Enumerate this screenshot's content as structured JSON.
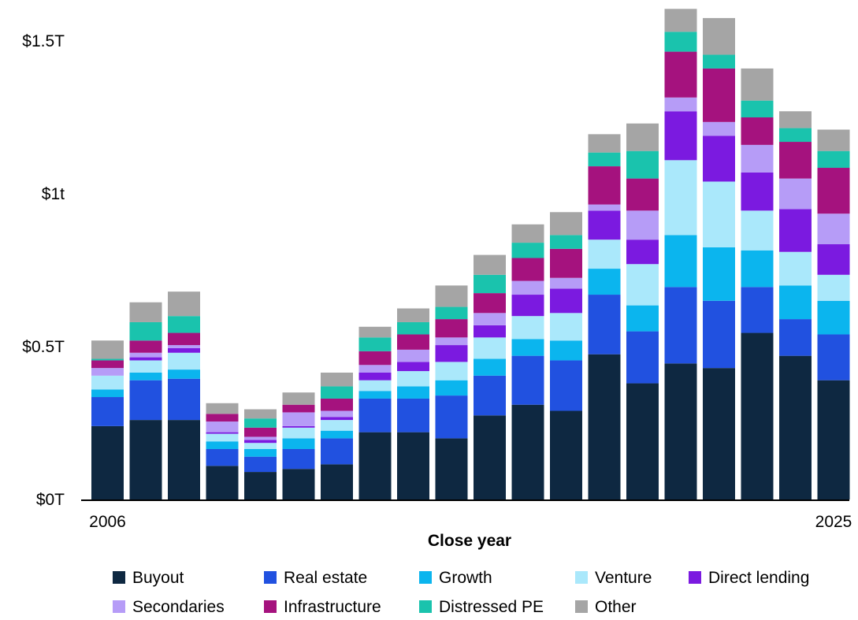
{
  "chart_data": {
    "type": "bar",
    "stacked": true,
    "title": "",
    "xlabel": "Close year",
    "ylabel": "",
    "categories": [
      "2006",
      "2007",
      "2008",
      "2009",
      "2010",
      "2011",
      "2012",
      "2013",
      "2014",
      "2015",
      "2016",
      "2017",
      "2018",
      "2019",
      "2020",
      "2021",
      "2022",
      "2023",
      "2024",
      "2025"
    ],
    "x_tick_labels": [
      {
        "category": "2006",
        "text": "2006"
      },
      {
        "category": "2025",
        "text": "2025"
      }
    ],
    "y_ticks": [
      {
        "value": 0,
        "text": "$0T"
      },
      {
        "value": 0.5,
        "text": "$0.5T"
      },
      {
        "value": 1.0,
        "text": "$1t"
      },
      {
        "value": 1.5,
        "text": "$1.5T"
      }
    ],
    "ylim": [
      0,
      1.6
    ],
    "grid": false,
    "legend_position": "bottom",
    "series": [
      {
        "name": "Buyout",
        "color": "#0e2841",
        "values": [
          0.24,
          0.26,
          0.26,
          0.11,
          0.09,
          0.1,
          0.115,
          0.22,
          0.22,
          0.2,
          0.275,
          0.31,
          0.29,
          0.475,
          0.38,
          0.445,
          0.43,
          0.545,
          0.47,
          0.39
        ]
      },
      {
        "name": "Real estate",
        "color": "#2151e0",
        "values": [
          0.095,
          0.13,
          0.135,
          0.055,
          0.05,
          0.065,
          0.085,
          0.11,
          0.11,
          0.14,
          0.13,
          0.16,
          0.165,
          0.195,
          0.17,
          0.25,
          0.22,
          0.15,
          0.12,
          0.15
        ]
      },
      {
        "name": "Growth",
        "color": "#0bb5ee",
        "values": [
          0.025,
          0.025,
          0.03,
          0.025,
          0.025,
          0.035,
          0.025,
          0.025,
          0.04,
          0.05,
          0.055,
          0.055,
          0.065,
          0.085,
          0.085,
          0.17,
          0.175,
          0.12,
          0.11,
          0.11
        ]
      },
      {
        "name": "Venture",
        "color": "#aae8fb",
        "values": [
          0.045,
          0.04,
          0.055,
          0.025,
          0.02,
          0.035,
          0.035,
          0.035,
          0.05,
          0.06,
          0.07,
          0.075,
          0.09,
          0.095,
          0.135,
          0.245,
          0.215,
          0.13,
          0.11,
          0.085
        ]
      },
      {
        "name": "Direct lending",
        "color": "#7b1ae0",
        "values": [
          0,
          0.01,
          0.015,
          0.005,
          0.01,
          0.005,
          0.01,
          0.025,
          0.03,
          0.055,
          0.04,
          0.07,
          0.08,
          0.095,
          0.08,
          0.16,
          0.15,
          0.125,
          0.14,
          0.1
        ]
      },
      {
        "name": "Secondaries",
        "color": "#b69cf7",
        "values": [
          0.025,
          0.015,
          0.01,
          0.035,
          0.01,
          0.045,
          0.02,
          0.025,
          0.04,
          0.025,
          0.04,
          0.045,
          0.035,
          0.02,
          0.095,
          0.045,
          0.045,
          0.09,
          0.1,
          0.1
        ]
      },
      {
        "name": "Infrastructure",
        "color": "#a5127e",
        "values": [
          0.025,
          0.04,
          0.04,
          0.025,
          0.03,
          0.025,
          0.04,
          0.045,
          0.05,
          0.06,
          0.065,
          0.075,
          0.095,
          0.125,
          0.105,
          0.15,
          0.175,
          0.09,
          0.12,
          0.15
        ]
      },
      {
        "name": "Distressed PE",
        "color": "#1ac3ad",
        "values": [
          0.005,
          0.06,
          0.055,
          0,
          0.03,
          0,
          0.04,
          0.045,
          0.04,
          0.04,
          0.06,
          0.05,
          0.045,
          0.045,
          0.09,
          0.065,
          0.045,
          0.055,
          0.045,
          0.055
        ]
      },
      {
        "name": "Other",
        "color": "#a5a5a5",
        "values": [
          0.06,
          0.065,
          0.08,
          0.035,
          0.03,
          0.04,
          0.045,
          0.035,
          0.045,
          0.07,
          0.065,
          0.06,
          0.075,
          0.06,
          0.09,
          0.075,
          0.12,
          0.105,
          0.055,
          0.07
        ]
      }
    ]
  }
}
